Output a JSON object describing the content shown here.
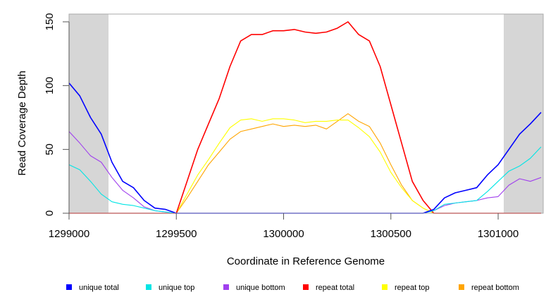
{
  "chart_data": {
    "type": "line",
    "title": "",
    "xlabel": "Coordinate in Reference Genome",
    "ylabel": "Read Coverage Depth",
    "xlim": [
      1299000,
      1301210
    ],
    "ylim": [
      0,
      157
    ],
    "x_ticks": [
      1299000,
      1299500,
      1300000,
      1300500,
      1301000
    ],
    "x_tick_labels": [
      "1299000",
      "1299500",
      "1300000",
      "1300500",
      "1301000"
    ],
    "y_ticks": [
      0,
      50,
      100,
      150
    ],
    "y_tick_labels": [
      "0",
      "50",
      "100",
      "150"
    ],
    "grid": false,
    "legend_position": "bottom",
    "shaded_regions": [
      [
        1299000,
        1299184
      ],
      [
        1301026,
        1301210
      ]
    ],
    "shade_color": "#d6d6d6",
    "x": [
      1299000,
      1299050,
      1299100,
      1299150,
      1299200,
      1299250,
      1299300,
      1299350,
      1299400,
      1299450,
      1299500,
      1299550,
      1299600,
      1299650,
      1299700,
      1299750,
      1299800,
      1299850,
      1299900,
      1299950,
      1300000,
      1300050,
      1300100,
      1300150,
      1300200,
      1300250,
      1300300,
      1300350,
      1300400,
      1300450,
      1300500,
      1300550,
      1300600,
      1300650,
      1300700,
      1300750,
      1300800,
      1300850,
      1300900,
      1300950,
      1301000,
      1301050,
      1301100,
      1301150,
      1301200
    ],
    "series": [
      {
        "name": "unique total",
        "color": "#0000ff",
        "values": [
          102,
          92,
          75,
          62,
          40,
          25,
          20,
          10,
          4,
          3,
          0,
          0,
          0,
          0,
          0,
          0,
          0,
          0,
          0,
          0,
          0,
          0,
          0,
          0,
          0,
          0,
          0,
          0,
          0,
          0,
          0,
          0,
          0,
          0,
          3,
          12,
          16,
          18,
          20,
          30,
          38,
          50,
          62,
          70,
          79
        ]
      },
      {
        "name": "unique top",
        "color": "#00e5e5",
        "values": [
          38,
          34,
          25,
          15,
          9,
          7,
          6,
          4,
          2,
          1,
          0,
          0,
          0,
          0,
          0,
          0,
          0,
          0,
          0,
          0,
          0,
          0,
          0,
          0,
          0,
          0,
          0,
          0,
          0,
          0,
          0,
          0,
          0,
          0,
          2,
          7,
          8,
          9,
          10,
          17,
          25,
          33,
          37,
          43,
          52
        ]
      },
      {
        "name": "unique bottom",
        "color": "#a040ee",
        "values": [
          64,
          55,
          45,
          40,
          28,
          18,
          12,
          5,
          2,
          1,
          0,
          0,
          0,
          0,
          0,
          0,
          0,
          0,
          0,
          0,
          0,
          0,
          0,
          0,
          0,
          0,
          0,
          0,
          0,
          0,
          0,
          0,
          0,
          0,
          2,
          6,
          8,
          9,
          10,
          12,
          13,
          22,
          27,
          25,
          28
        ]
      },
      {
        "name": "repeat total",
        "color": "#ff0000",
        "values": [
          0,
          0,
          0,
          0,
          0,
          0,
          0,
          0,
          0,
          0,
          0,
          25,
          50,
          70,
          90,
          115,
          135,
          140,
          140,
          143,
          143,
          144,
          142,
          141,
          142,
          145,
          150,
          140,
          135,
          115,
          85,
          55,
          25,
          10,
          0,
          0,
          0,
          0,
          0,
          0,
          0,
          0,
          0,
          0,
          0
        ]
      },
      {
        "name": "repeat top",
        "color": "#ffff00",
        "values": [
          0,
          0,
          0,
          0,
          0,
          0,
          0,
          0,
          0,
          0,
          0,
          15,
          30,
          42,
          55,
          67,
          73,
          74,
          72,
          74,
          74,
          73,
          71,
          72,
          72,
          73,
          73,
          67,
          60,
          48,
          32,
          20,
          10,
          4,
          0,
          0,
          0,
          0,
          0,
          0,
          0,
          0,
          0,
          0,
          0
        ]
      },
      {
        "name": "repeat bottom",
        "color": "#ffa500",
        "values": [
          0,
          0,
          0,
          0,
          0,
          0,
          0,
          0,
          0,
          0,
          0,
          12,
          25,
          38,
          48,
          58,
          64,
          66,
          68,
          70,
          68,
          69,
          68,
          69,
          66,
          72,
          78,
          72,
          68,
          55,
          38,
          22,
          10,
          4,
          0,
          0,
          0,
          0,
          0,
          0,
          0,
          0,
          0,
          0,
          0
        ]
      }
    ]
  }
}
